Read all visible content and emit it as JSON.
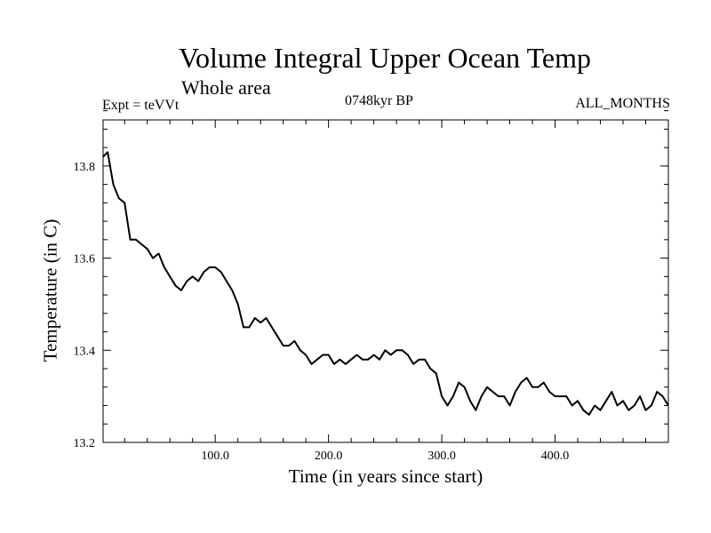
{
  "chart_data": {
    "type": "line",
    "title": "Volume Integral Upper Ocean Temp",
    "subtitle": "Whole area",
    "annotations": {
      "experiment": "Expt = teVVt",
      "period": "0748kyr BP",
      "months": "ALL_MONTHS"
    },
    "xlabel": "Time (in years since start)",
    "ylabel": "Temperature (in C)",
    "xlim": [
      1,
      500
    ],
    "ylim": [
      13.2,
      13.9
    ],
    "xticks": [
      100.0,
      200.0,
      300.0,
      400.0
    ],
    "xtick_labels": [
      "100.0",
      "200.0",
      "300.0",
      "400.0"
    ],
    "yticks": [
      13.2,
      13.4,
      13.6,
      13.8
    ],
    "ytick_labels": [
      "13.2",
      "13.4",
      "13.6",
      "13.8"
    ],
    "grid": false,
    "line_color": "#000000",
    "series": [
      {
        "x": [
          1,
          5,
          10,
          15,
          20,
          25,
          30,
          35,
          40,
          45,
          50,
          55,
          60,
          65,
          70,
          75,
          80,
          85,
          90,
          95,
          100,
          105,
          110,
          115,
          120,
          125,
          130,
          135,
          140,
          145,
          150,
          155,
          160,
          165,
          170,
          175,
          180,
          185,
          190,
          195,
          200,
          205,
          210,
          215,
          220,
          225,
          230,
          235,
          240,
          245,
          250,
          255,
          260,
          265,
          270,
          275,
          280,
          285,
          290,
          295,
          300,
          305,
          310,
          315,
          320,
          325,
          330,
          335,
          340,
          345,
          350,
          355,
          360,
          365,
          370,
          375,
          380,
          385,
          390,
          395,
          400,
          405,
          410,
          415,
          420,
          425,
          430,
          435,
          440,
          445,
          450,
          455,
          460,
          465,
          470,
          475,
          480,
          485,
          490,
          495,
          500
        ],
        "values": [
          13.82,
          13.83,
          13.76,
          13.73,
          13.72,
          13.64,
          13.64,
          13.63,
          13.62,
          13.6,
          13.61,
          13.58,
          13.56,
          13.54,
          13.53,
          13.55,
          13.56,
          13.55,
          13.57,
          13.58,
          13.58,
          13.57,
          13.55,
          13.53,
          13.5,
          13.45,
          13.45,
          13.47,
          13.46,
          13.47,
          13.45,
          13.43,
          13.41,
          13.41,
          13.42,
          13.4,
          13.39,
          13.37,
          13.38,
          13.39,
          13.39,
          13.37,
          13.38,
          13.37,
          13.38,
          13.39,
          13.38,
          13.38,
          13.39,
          13.38,
          13.4,
          13.39,
          13.4,
          13.4,
          13.39,
          13.37,
          13.38,
          13.38,
          13.36,
          13.35,
          13.3,
          13.28,
          13.3,
          13.33,
          13.32,
          13.29,
          13.27,
          13.3,
          13.32,
          13.31,
          13.3,
          13.3,
          13.28,
          13.31,
          13.33,
          13.34,
          13.32,
          13.32,
          13.33,
          13.31,
          13.3,
          13.3,
          13.3,
          13.28,
          13.29,
          13.27,
          13.26,
          13.28,
          13.27,
          13.29,
          13.31,
          13.28,
          13.29,
          13.27,
          13.28,
          13.3,
          13.27,
          13.28,
          13.31,
          13.3,
          13.28
        ]
      }
    ]
  }
}
